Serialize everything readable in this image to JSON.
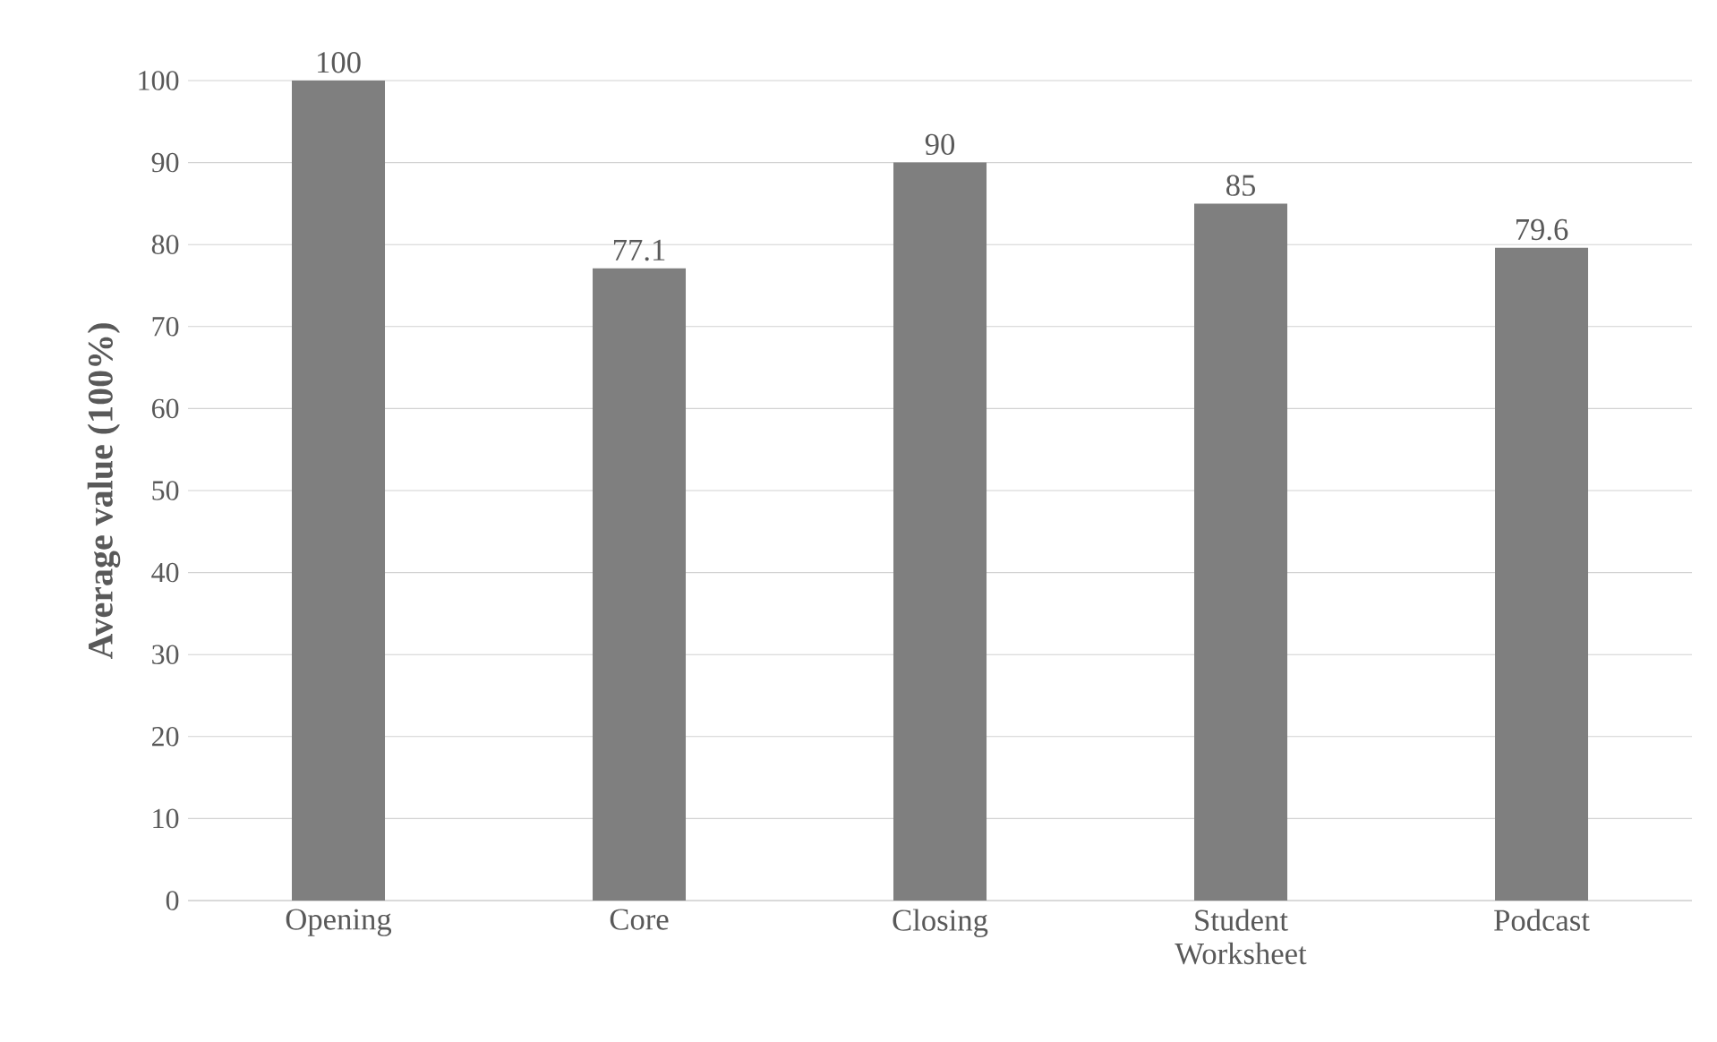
{
  "chart_data": {
    "type": "bar",
    "ylabel": "Average value (100%)",
    "categories": [
      "Opening",
      "Core",
      "Closing",
      "Student Worksheet",
      "Podcast"
    ],
    "values": [
      100,
      77.1,
      90,
      85,
      79.6
    ],
    "color": "#7f7f7f",
    "ylim": [
      0,
      100
    ],
    "yticks": [
      0,
      10,
      20,
      30,
      40,
      50,
      60,
      70,
      80,
      90,
      100
    ],
    "grid": "y",
    "data_labels": true
  }
}
